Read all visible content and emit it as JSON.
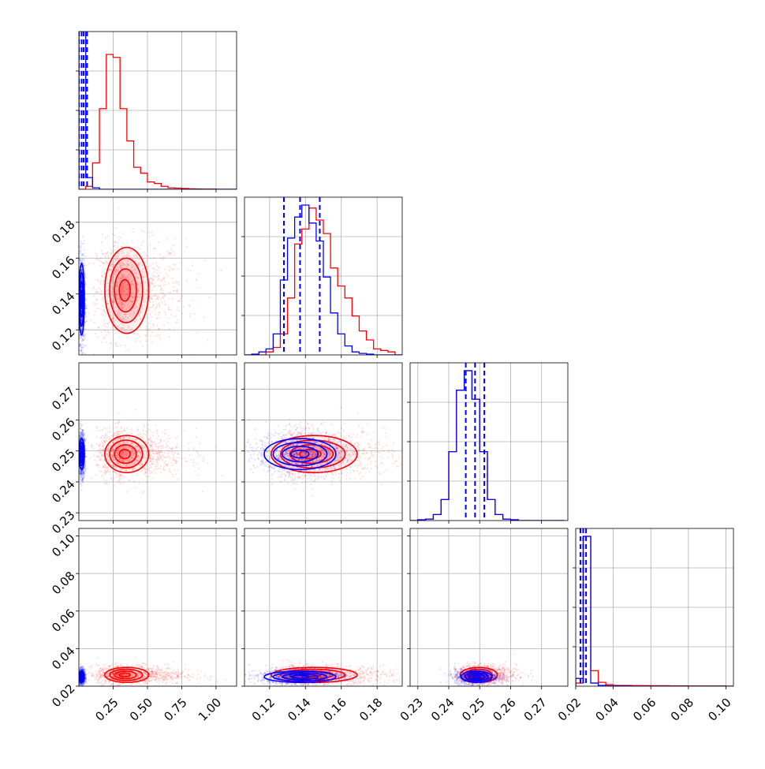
{
  "chart_data": {
    "type": "corner",
    "title": "",
    "variables": [
      {
        "range": [
          0,
          1.15
        ],
        "ticks": [
          0.25,
          0.5,
          0.75,
          1.0
        ],
        "tick_labels": [
          "0.25",
          "0.50",
          "0.75",
          "1.00"
        ]
      },
      {
        "range": [
          0.106,
          0.194
        ],
        "ticks": [
          0.12,
          0.14,
          0.16,
          0.18
        ],
        "tick_labels": [
          "0.12",
          "0.14",
          "0.16",
          "0.18"
        ]
      },
      {
        "range": [
          0.2275,
          0.2785
        ],
        "ticks": [
          0.23,
          0.24,
          0.25,
          0.26,
          0.27
        ],
        "tick_labels": [
          "0.23",
          "0.24",
          "0.25",
          "0.26",
          "0.27"
        ]
      },
      {
        "range": [
          0.02,
          0.104
        ],
        "ticks": [
          0.02,
          0.04,
          0.06,
          0.08,
          0.1
        ],
        "tick_labels": [
          "0.02",
          "0.04",
          "0.06",
          "0.08",
          "0.10"
        ]
      }
    ],
    "series": [
      {
        "name": "",
        "color": "#ff0000",
        "histograms": [
          {
            "edges": [
              0.0,
              0.05,
              0.1,
              0.15,
              0.2,
              0.25,
              0.3,
              0.35,
              0.4,
              0.45,
              0.5,
              0.55,
              0.6,
              0.65,
              0.7,
              0.75,
              0.8,
              0.85,
              0.9,
              0.95,
              1.0,
              1.05,
              1.1,
              1.15
            ],
            "counts": [
              0.0,
              0.02,
              0.18,
              0.55,
              0.92,
              0.9,
              0.55,
              0.33,
              0.15,
              0.11,
              0.05,
              0.04,
              0.02,
              0.01,
              0.008,
              0.005,
              0.003,
              0.002,
              0.001,
              0.001,
              0.0,
              0.0,
              0.0
            ]
          },
          {
            "edges": [
              0.106,
              0.11,
              0.114,
              0.118,
              0.122,
              0.126,
              0.13,
              0.134,
              0.138,
              0.142,
              0.146,
              0.15,
              0.154,
              0.158,
              0.162,
              0.166,
              0.17,
              0.174,
              0.178,
              0.182,
              0.186,
              0.19,
              0.194
            ],
            "counts": [
              0.0,
              0.0,
              0.0,
              0.02,
              0.05,
              0.14,
              0.38,
              0.74,
              0.84,
              0.98,
              0.9,
              0.81,
              0.58,
              0.46,
              0.38,
              0.26,
              0.16,
              0.1,
              0.04,
              0.03,
              0.02,
              0.0
            ]
          },
          {
            "edges": [
              0.2275,
              0.23,
              0.2325,
              0.235,
              0.2375,
              0.24,
              0.2425,
              0.245,
              0.2475,
              0.25,
              0.2525,
              0.255,
              0.2575,
              0.26,
              0.2625,
              0.265,
              0.2675,
              0.27,
              0.2725,
              0.275,
              0.2775
            ],
            "counts": [
              0.0,
              0.005,
              0.01,
              0.04,
              0.14,
              0.46,
              0.87,
              1.0,
              0.81,
              0.46,
              0.14,
              0.04,
              0.01,
              0.005,
              0.0,
              0.0,
              0.0,
              0.0,
              0.0,
              0.0
            ]
          },
          {
            "edges": [
              0.02,
              0.024,
              0.028,
              0.032,
              0.036,
              0.04,
              0.05,
              0.06,
              0.07,
              0.08,
              0.09,
              0.1,
              0.104
            ],
            "counts": [
              0.02,
              0.97,
              0.1,
              0.025,
              0.01,
              0.005,
              0.004,
              0.003,
              0.002,
              0.001,
              0.001,
              0.0
            ]
          }
        ],
        "means": [
          0.33,
          0.142,
          0.249,
          0.026
        ],
        "sigmas": [
          0.08,
          0.012,
          0.003,
          0.002
        ],
        "cloud_sigmas": [
          0.14,
          0.014,
          0.004,
          0.0026
        ]
      },
      {
        "name": "",
        "color": "#0000ff",
        "histograms": [
          {
            "edges": [
              0.0,
              0.05,
              0.1,
              0.15,
              1.15
            ],
            "counts": [
              4.5,
              0.08,
              0.01,
              0.0
            ]
          },
          {
            "edges": [
              0.106,
              0.11,
              0.114,
              0.118,
              0.122,
              0.126,
              0.13,
              0.134,
              0.138,
              0.142,
              0.146,
              0.15,
              0.154,
              0.158,
              0.162,
              0.166,
              0.17,
              0.174,
              0.178,
              0.182,
              0.186,
              0.19,
              0.194
            ],
            "counts": [
              0.0,
              0.005,
              0.02,
              0.04,
              0.14,
              0.5,
              0.78,
              0.92,
              1.0,
              0.88,
              0.76,
              0.52,
              0.28,
              0.14,
              0.06,
              0.02,
              0.01,
              0.005,
              0.0,
              0.0,
              0.0,
              0.0
            ]
          },
          {
            "edges": [
              0.2275,
              0.23,
              0.2325,
              0.235,
              0.2375,
              0.24,
              0.2425,
              0.245,
              0.2475,
              0.25,
              0.2525,
              0.255,
              0.2575,
              0.26,
              0.2625,
              0.265,
              0.2675,
              0.27,
              0.2725,
              0.275,
              0.2775
            ],
            "counts": [
              0.0,
              0.005,
              0.01,
              0.04,
              0.14,
              0.46,
              0.87,
              1.0,
              0.81,
              0.46,
              0.14,
              0.04,
              0.01,
              0.005,
              0.0,
              0.0,
              0.0,
              0.0,
              0.0,
              0.0
            ]
          },
          {
            "edges": [
              0.02,
              0.024,
              0.028,
              0.032,
              0.036,
              0.04,
              0.05,
              0.06,
              0.07,
              0.08,
              0.09,
              0.1,
              0.104
            ],
            "counts": [
              0.05,
              0.97,
              0.02,
              0.005,
              0.002,
              0.001,
              0.0,
              0.0,
              0.0,
              0.0,
              0.0,
              0.0
            ]
          }
        ],
        "means": [
          0.02,
          0.137,
          0.249,
          0.025
        ],
        "sigmas": [
          0.01,
          0.01,
          0.0025,
          0.0015
        ],
        "cloud_sigmas": [
          0.012,
          0.012,
          0.0035,
          0.002
        ],
        "quantile_lines": [
          [
            0.0,
            0.02,
            0.035,
            0.06
          ],
          [
            0.128,
            0.137,
            0.148
          ],
          [
            0.2455,
            0.2485,
            0.2515
          ],
          [
            0.0225,
            0.024,
            0.0255
          ]
        ]
      }
    ],
    "grid": true
  }
}
